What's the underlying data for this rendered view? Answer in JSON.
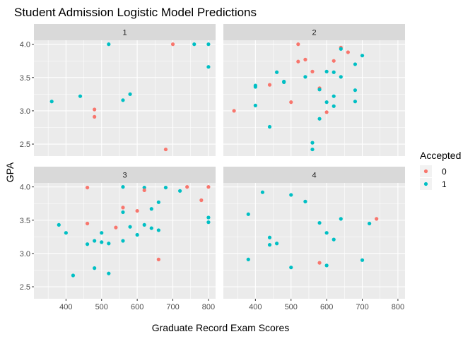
{
  "chart_data": {
    "type": "scatter",
    "title": "Student Admission Logistic Model Predictions",
    "xlabel": "Graduate Record Exam Scores",
    "ylabel": "GPA",
    "xlim": [
      310,
      820
    ],
    "ylim": [
      2.32,
      4.06
    ],
    "x_ticks": [
      400,
      500,
      600,
      700,
      800
    ],
    "y_ticks": [
      2.5,
      3.0,
      3.5,
      4.0
    ],
    "x_tick_labels": [
      "400",
      "500",
      "600",
      "700",
      "800"
    ],
    "y_tick_labels": [
      "2.5",
      "3.0",
      "3.5",
      "4.0"
    ],
    "grid": true,
    "facet_labels": [
      "1",
      "2",
      "3",
      "4"
    ],
    "legend": {
      "title": "Accepted",
      "position": "right",
      "entries": [
        {
          "label": "0",
          "color": "#F8766D"
        },
        {
          "label": "1",
          "color": "#00BFC4"
        }
      ]
    },
    "panels": [
      {
        "label": "1",
        "points": [
          {
            "x": 360,
            "y": 3.14,
            "accepted": 1
          },
          {
            "x": 440,
            "y": 3.22,
            "accepted": 1
          },
          {
            "x": 480,
            "y": 3.02,
            "accepted": 0
          },
          {
            "x": 480,
            "y": 2.91,
            "accepted": 0
          },
          {
            "x": 520,
            "y": 4.0,
            "accepted": 1
          },
          {
            "x": 560,
            "y": 3.16,
            "accepted": 1
          },
          {
            "x": 580,
            "y": 3.25,
            "accepted": 1
          },
          {
            "x": 680,
            "y": 2.42,
            "accepted": 0
          },
          {
            "x": 700,
            "y": 4.0,
            "accepted": 0
          },
          {
            "x": 760,
            "y": 4.0,
            "accepted": 1
          },
          {
            "x": 800,
            "y": 4.0,
            "accepted": 1
          },
          {
            "x": 800,
            "y": 3.66,
            "accepted": 1
          }
        ]
      },
      {
        "label": "2",
        "points": [
          {
            "x": 340,
            "y": 3.0,
            "accepted": 0
          },
          {
            "x": 400,
            "y": 3.38,
            "accepted": 1
          },
          {
            "x": 400,
            "y": 3.36,
            "accepted": 1
          },
          {
            "x": 400,
            "y": 3.08,
            "accepted": 1
          },
          {
            "x": 440,
            "y": 3.39,
            "accepted": 0
          },
          {
            "x": 440,
            "y": 2.76,
            "accepted": 1
          },
          {
            "x": 460,
            "y": 3.58,
            "accepted": 1
          },
          {
            "x": 480,
            "y": 3.44,
            "accepted": 1
          },
          {
            "x": 480,
            "y": 3.43,
            "accepted": 1
          },
          {
            "x": 500,
            "y": 3.13,
            "accepted": 0
          },
          {
            "x": 520,
            "y": 4.0,
            "accepted": 0
          },
          {
            "x": 520,
            "y": 3.74,
            "accepted": 0
          },
          {
            "x": 540,
            "y": 3.77,
            "accepted": 0
          },
          {
            "x": 540,
            "y": 3.51,
            "accepted": 1
          },
          {
            "x": 560,
            "y": 3.59,
            "accepted": 0
          },
          {
            "x": 560,
            "y": 2.52,
            "accepted": 1
          },
          {
            "x": 560,
            "y": 2.42,
            "accepted": 1
          },
          {
            "x": 580,
            "y": 3.34,
            "accepted": 0
          },
          {
            "x": 580,
            "y": 3.32,
            "accepted": 1
          },
          {
            "x": 580,
            "y": 2.88,
            "accepted": 1
          },
          {
            "x": 600,
            "y": 3.59,
            "accepted": 1
          },
          {
            "x": 600,
            "y": 3.13,
            "accepted": 1
          },
          {
            "x": 600,
            "y": 2.98,
            "accepted": 0
          },
          {
            "x": 620,
            "y": 3.75,
            "accepted": 0
          },
          {
            "x": 620,
            "y": 3.58,
            "accepted": 1
          },
          {
            "x": 620,
            "y": 3.22,
            "accepted": 1
          },
          {
            "x": 620,
            "y": 3.07,
            "accepted": 1
          },
          {
            "x": 640,
            "y": 3.95,
            "accepted": 0
          },
          {
            "x": 640,
            "y": 3.93,
            "accepted": 1
          },
          {
            "x": 640,
            "y": 3.51,
            "accepted": 1
          },
          {
            "x": 660,
            "y": 3.88,
            "accepted": 0
          },
          {
            "x": 680,
            "y": 3.7,
            "accepted": 1
          },
          {
            "x": 680,
            "y": 3.31,
            "accepted": 1
          },
          {
            "x": 680,
            "y": 3.14,
            "accepted": 1
          },
          {
            "x": 700,
            "y": 3.83,
            "accepted": 1
          }
        ]
      },
      {
        "label": "3",
        "points": [
          {
            "x": 380,
            "y": 3.43,
            "accepted": 1
          },
          {
            "x": 400,
            "y": 3.31,
            "accepted": 1
          },
          {
            "x": 420,
            "y": 2.67,
            "accepted": 1
          },
          {
            "x": 460,
            "y": 3.99,
            "accepted": 0
          },
          {
            "x": 460,
            "y": 3.45,
            "accepted": 0
          },
          {
            "x": 460,
            "y": 3.14,
            "accepted": 1
          },
          {
            "x": 480,
            "y": 3.19,
            "accepted": 1
          },
          {
            "x": 480,
            "y": 2.78,
            "accepted": 1
          },
          {
            "x": 500,
            "y": 3.31,
            "accepted": 1
          },
          {
            "x": 500,
            "y": 3.17,
            "accepted": 1
          },
          {
            "x": 520,
            "y": 3.15,
            "accepted": 1
          },
          {
            "x": 520,
            "y": 2.7,
            "accepted": 1
          },
          {
            "x": 540,
            "y": 3.39,
            "accepted": 0
          },
          {
            "x": 560,
            "y": 4.0,
            "accepted": 1
          },
          {
            "x": 560,
            "y": 3.69,
            "accepted": 0
          },
          {
            "x": 560,
            "y": 3.62,
            "accepted": 1
          },
          {
            "x": 560,
            "y": 3.19,
            "accepted": 1
          },
          {
            "x": 580,
            "y": 3.4,
            "accepted": 1
          },
          {
            "x": 600,
            "y": 3.64,
            "accepted": 0
          },
          {
            "x": 600,
            "y": 3.28,
            "accepted": 1
          },
          {
            "x": 620,
            "y": 3.99,
            "accepted": 1
          },
          {
            "x": 620,
            "y": 3.95,
            "accepted": 0
          },
          {
            "x": 620,
            "y": 3.43,
            "accepted": 1
          },
          {
            "x": 640,
            "y": 3.67,
            "accepted": 1
          },
          {
            "x": 640,
            "y": 3.38,
            "accepted": 1
          },
          {
            "x": 660,
            "y": 3.77,
            "accepted": 1
          },
          {
            "x": 660,
            "y": 3.35,
            "accepted": 1
          },
          {
            "x": 660,
            "y": 2.91,
            "accepted": 0
          },
          {
            "x": 680,
            "y": 3.99,
            "accepted": 1
          },
          {
            "x": 720,
            "y": 3.94,
            "accepted": 1
          },
          {
            "x": 740,
            "y": 4.0,
            "accepted": 0
          },
          {
            "x": 780,
            "y": 3.8,
            "accepted": 0
          },
          {
            "x": 800,
            "y": 4.0,
            "accepted": 0
          },
          {
            "x": 800,
            "y": 3.54,
            "accepted": 1
          },
          {
            "x": 800,
            "y": 3.47,
            "accepted": 1
          }
        ]
      },
      {
        "label": "4",
        "points": [
          {
            "x": 380,
            "y": 3.59,
            "accepted": 1
          },
          {
            "x": 380,
            "y": 2.91,
            "accepted": 1
          },
          {
            "x": 420,
            "y": 3.92,
            "accepted": 1
          },
          {
            "x": 440,
            "y": 3.24,
            "accepted": 1
          },
          {
            "x": 440,
            "y": 3.13,
            "accepted": 1
          },
          {
            "x": 460,
            "y": 3.15,
            "accepted": 1
          },
          {
            "x": 500,
            "y": 3.88,
            "accepted": 1
          },
          {
            "x": 500,
            "y": 2.79,
            "accepted": 1
          },
          {
            "x": 540,
            "y": 3.78,
            "accepted": 1
          },
          {
            "x": 580,
            "y": 3.46,
            "accepted": 1
          },
          {
            "x": 580,
            "y": 2.86,
            "accepted": 0
          },
          {
            "x": 600,
            "y": 3.31,
            "accepted": 1
          },
          {
            "x": 600,
            "y": 2.82,
            "accepted": 1
          },
          {
            "x": 620,
            "y": 3.21,
            "accepted": 1
          },
          {
            "x": 640,
            "y": 3.52,
            "accepted": 1
          },
          {
            "x": 700,
            "y": 2.9,
            "accepted": 1
          },
          {
            "x": 720,
            "y": 3.45,
            "accepted": 1
          },
          {
            "x": 740,
            "y": 3.52,
            "accepted": 0
          }
        ]
      }
    ]
  }
}
